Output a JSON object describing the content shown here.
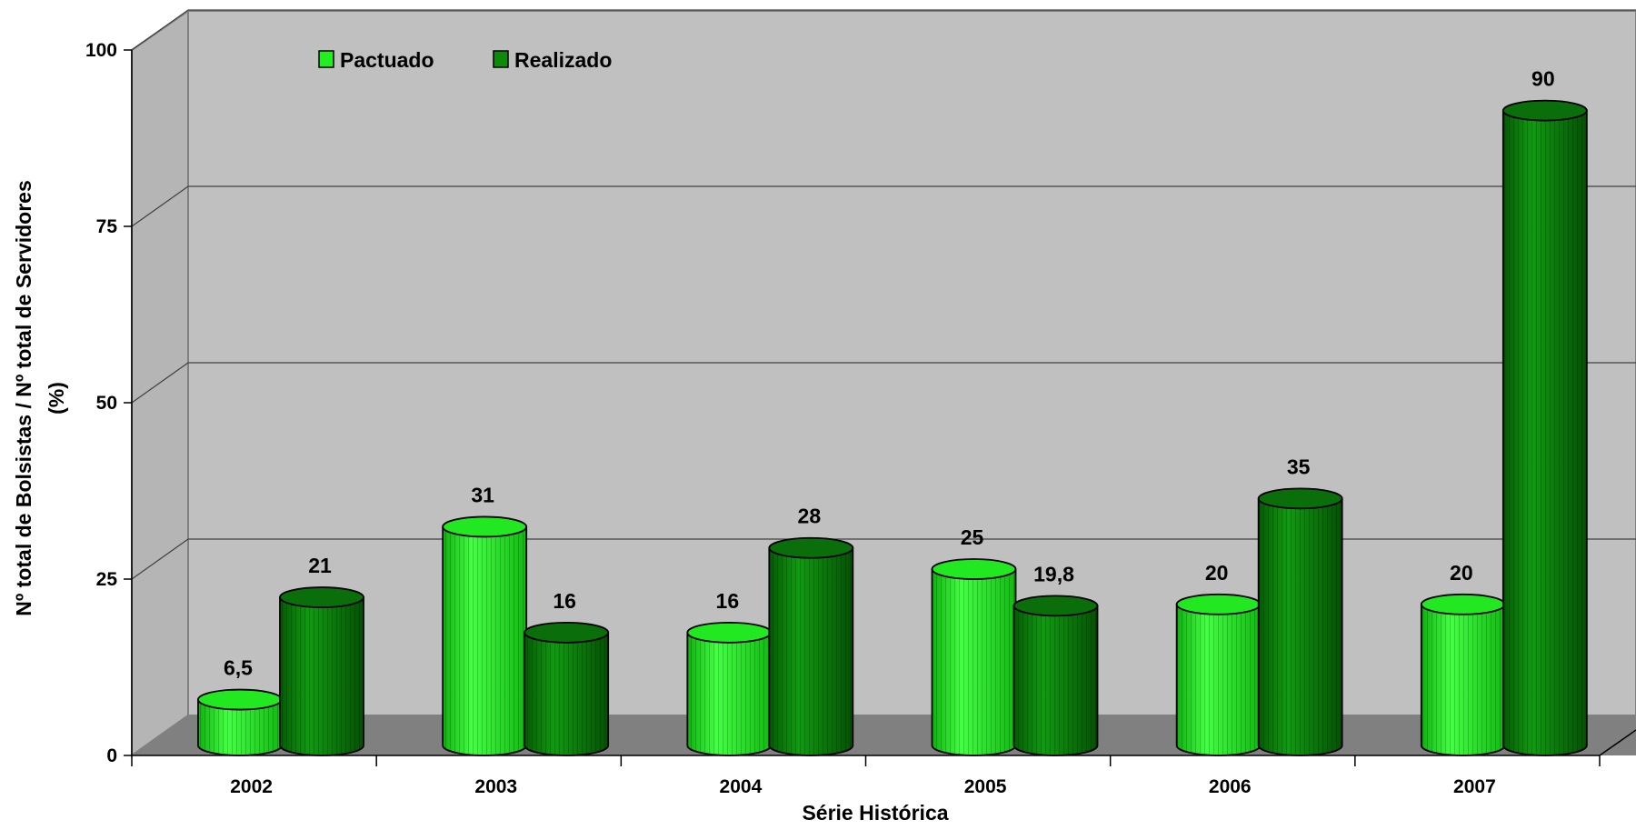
{
  "chart_data": {
    "type": "bar",
    "title": "",
    "xlabel": "Série Histórica",
    "ylabel": "Nº total de Bolsistas / Nº total de Servidores",
    "ylabel_line2": "(%)",
    "ylim": [
      0,
      100
    ],
    "yticks": [
      0,
      25,
      50,
      75,
      100
    ],
    "categories": [
      "2002",
      "2003",
      "2004",
      "2005",
      "2006",
      "2007"
    ],
    "series": [
      {
        "name": "Pactuado",
        "color": "#22ee22",
        "values": [
          6.5,
          31,
          16,
          25,
          20,
          20
        ],
        "labels": [
          "6,5",
          "31",
          "16",
          "25",
          "20",
          "20"
        ]
      },
      {
        "name": "Realizado",
        "color": "#0b8a0b",
        "values": [
          21,
          16,
          28,
          19.8,
          35,
          90
        ],
        "labels": [
          "21",
          "16",
          "28",
          "19,8",
          "35",
          "90"
        ]
      }
    ],
    "legend_position": "top-left",
    "grid": true,
    "style": "3d-cylinder"
  },
  "colors": {
    "wall": "#c0c0c0",
    "floor": "#808080",
    "grid": "#404040"
  }
}
